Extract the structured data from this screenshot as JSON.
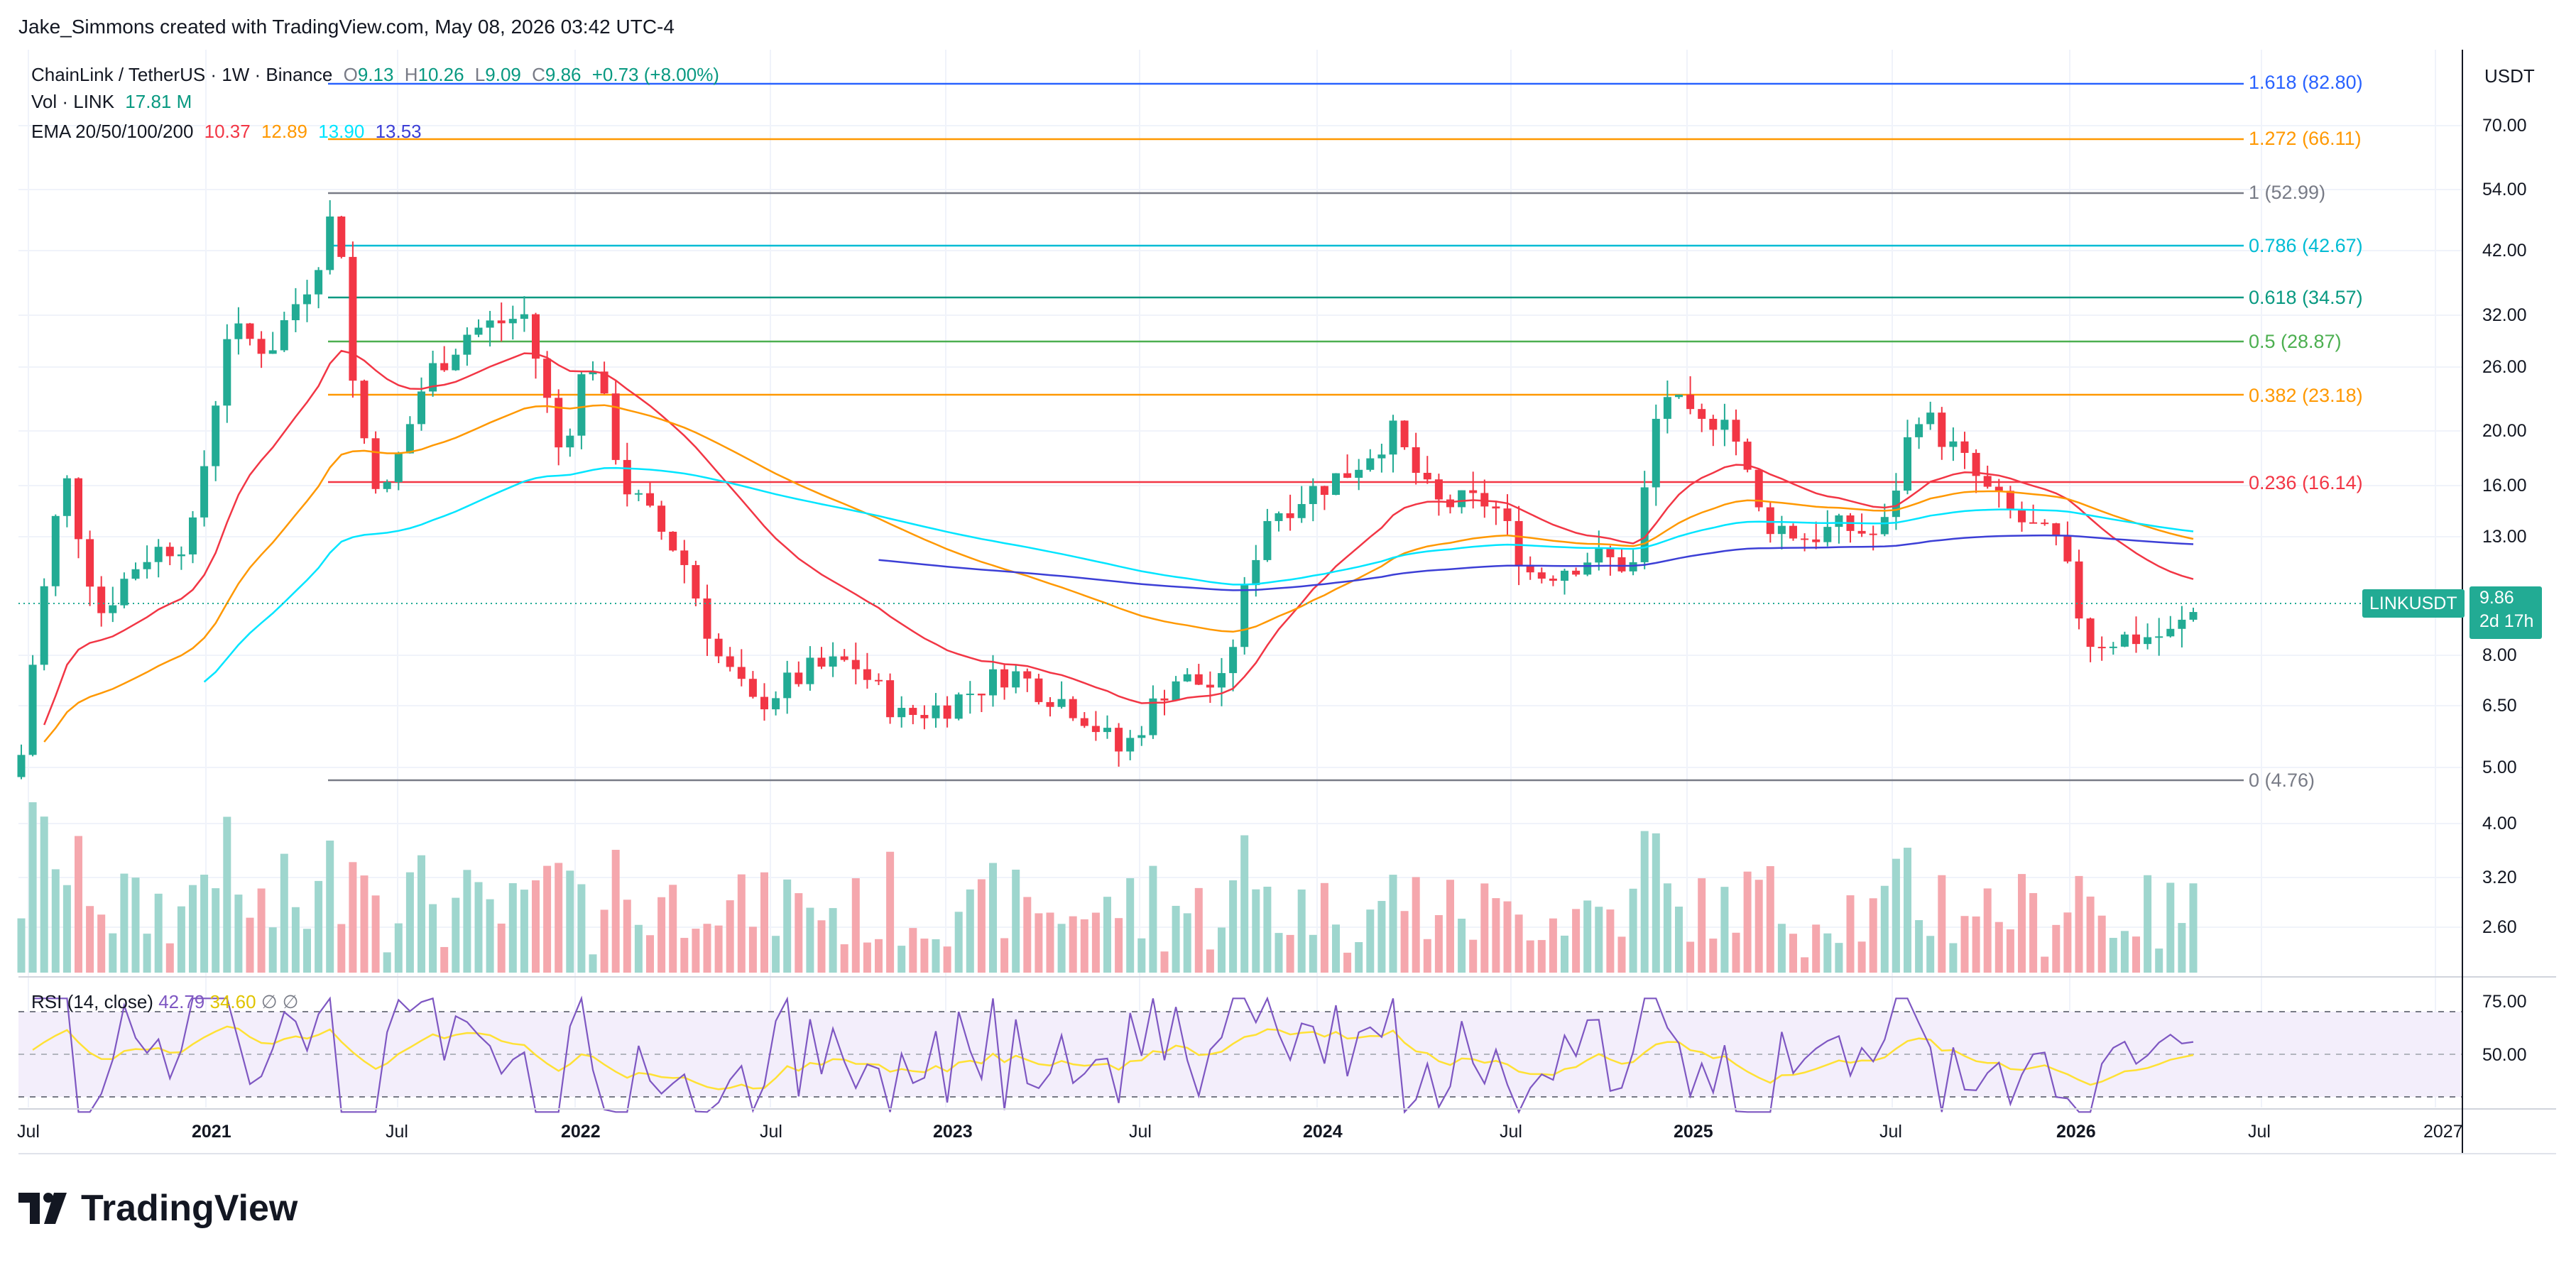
{
  "credit": "Jake_Simmons created with TradingView.com, May 08, 2026 03:42 UTC-4",
  "legend": {
    "symbol": "ChainLink / TetherUS · 1W · Binance",
    "o_key": "O",
    "o_val": "9.13",
    "h_key": "H",
    "h_val": "10.26",
    "l_key": "L",
    "l_val": "9.09",
    "c_key": "C",
    "c_val": "9.86",
    "change": "+0.73 (+8.00%)",
    "vol_label": "Vol · LINK",
    "vol_val": "17.81 M",
    "ema_label": "EMA 20/50/100/200",
    "ema20": "10.37",
    "ema50": "12.89",
    "ema100": "13.90",
    "ema200": "13.53",
    "rsi_label": "RSI (14, close)",
    "rsi_val": "42.79",
    "rsi_ma": "34.60",
    "rsi_na1": "∅",
    "rsi_na2": "∅"
  },
  "currency": "USDT",
  "price_tag": {
    "symbol": "LINKUSDT",
    "price": "9.86",
    "countdown": "2d 17h"
  },
  "price_axis": [
    "70.00",
    "54.00",
    "42.00",
    "32.00",
    "26.00",
    "20.00",
    "16.00",
    "13.00",
    "8.00",
    "6.50",
    "5.00",
    "4.00",
    "3.20",
    "2.60"
  ],
  "rsi_axis": [
    "75.00",
    "50.00"
  ],
  "time_axis": [
    "Jul",
    "2021",
    "Jul",
    "2022",
    "Jul",
    "2023",
    "Jul",
    "2024",
    "Jul",
    "2025",
    "Jul",
    "2026",
    "Jul",
    "2027"
  ],
  "fib_levels": [
    {
      "label": "1.618 (82.80)",
      "color": "#2962ff"
    },
    {
      "label": "1.272 (66.11)",
      "color": "#ff9800"
    },
    {
      "label": "1 (52.99)",
      "color": "#787b86"
    },
    {
      "label": "0.786 (42.67)",
      "color": "#00bcd4"
    },
    {
      "label": "0.618 (34.57)",
      "color": "#089981"
    },
    {
      "label": "0.5 (28.87)",
      "color": "#4caf50"
    },
    {
      "label": "0.382 (23.18)",
      "color": "#ff9800"
    },
    {
      "label": "0.236 (16.14)",
      "color": "#f23645"
    },
    {
      "label": "0 (4.76)",
      "color": "#787b86"
    }
  ],
  "colors": {
    "up": "#22ab94",
    "down": "#f23645",
    "ema20": "#f23645",
    "ema50": "#ff9800",
    "ema100": "#00e5ff",
    "ema200": "#3c3fd6",
    "rsi": "#7e57c2",
    "rsi_ma": "#ffe135"
  },
  "logo_text": "TradingView"
}
